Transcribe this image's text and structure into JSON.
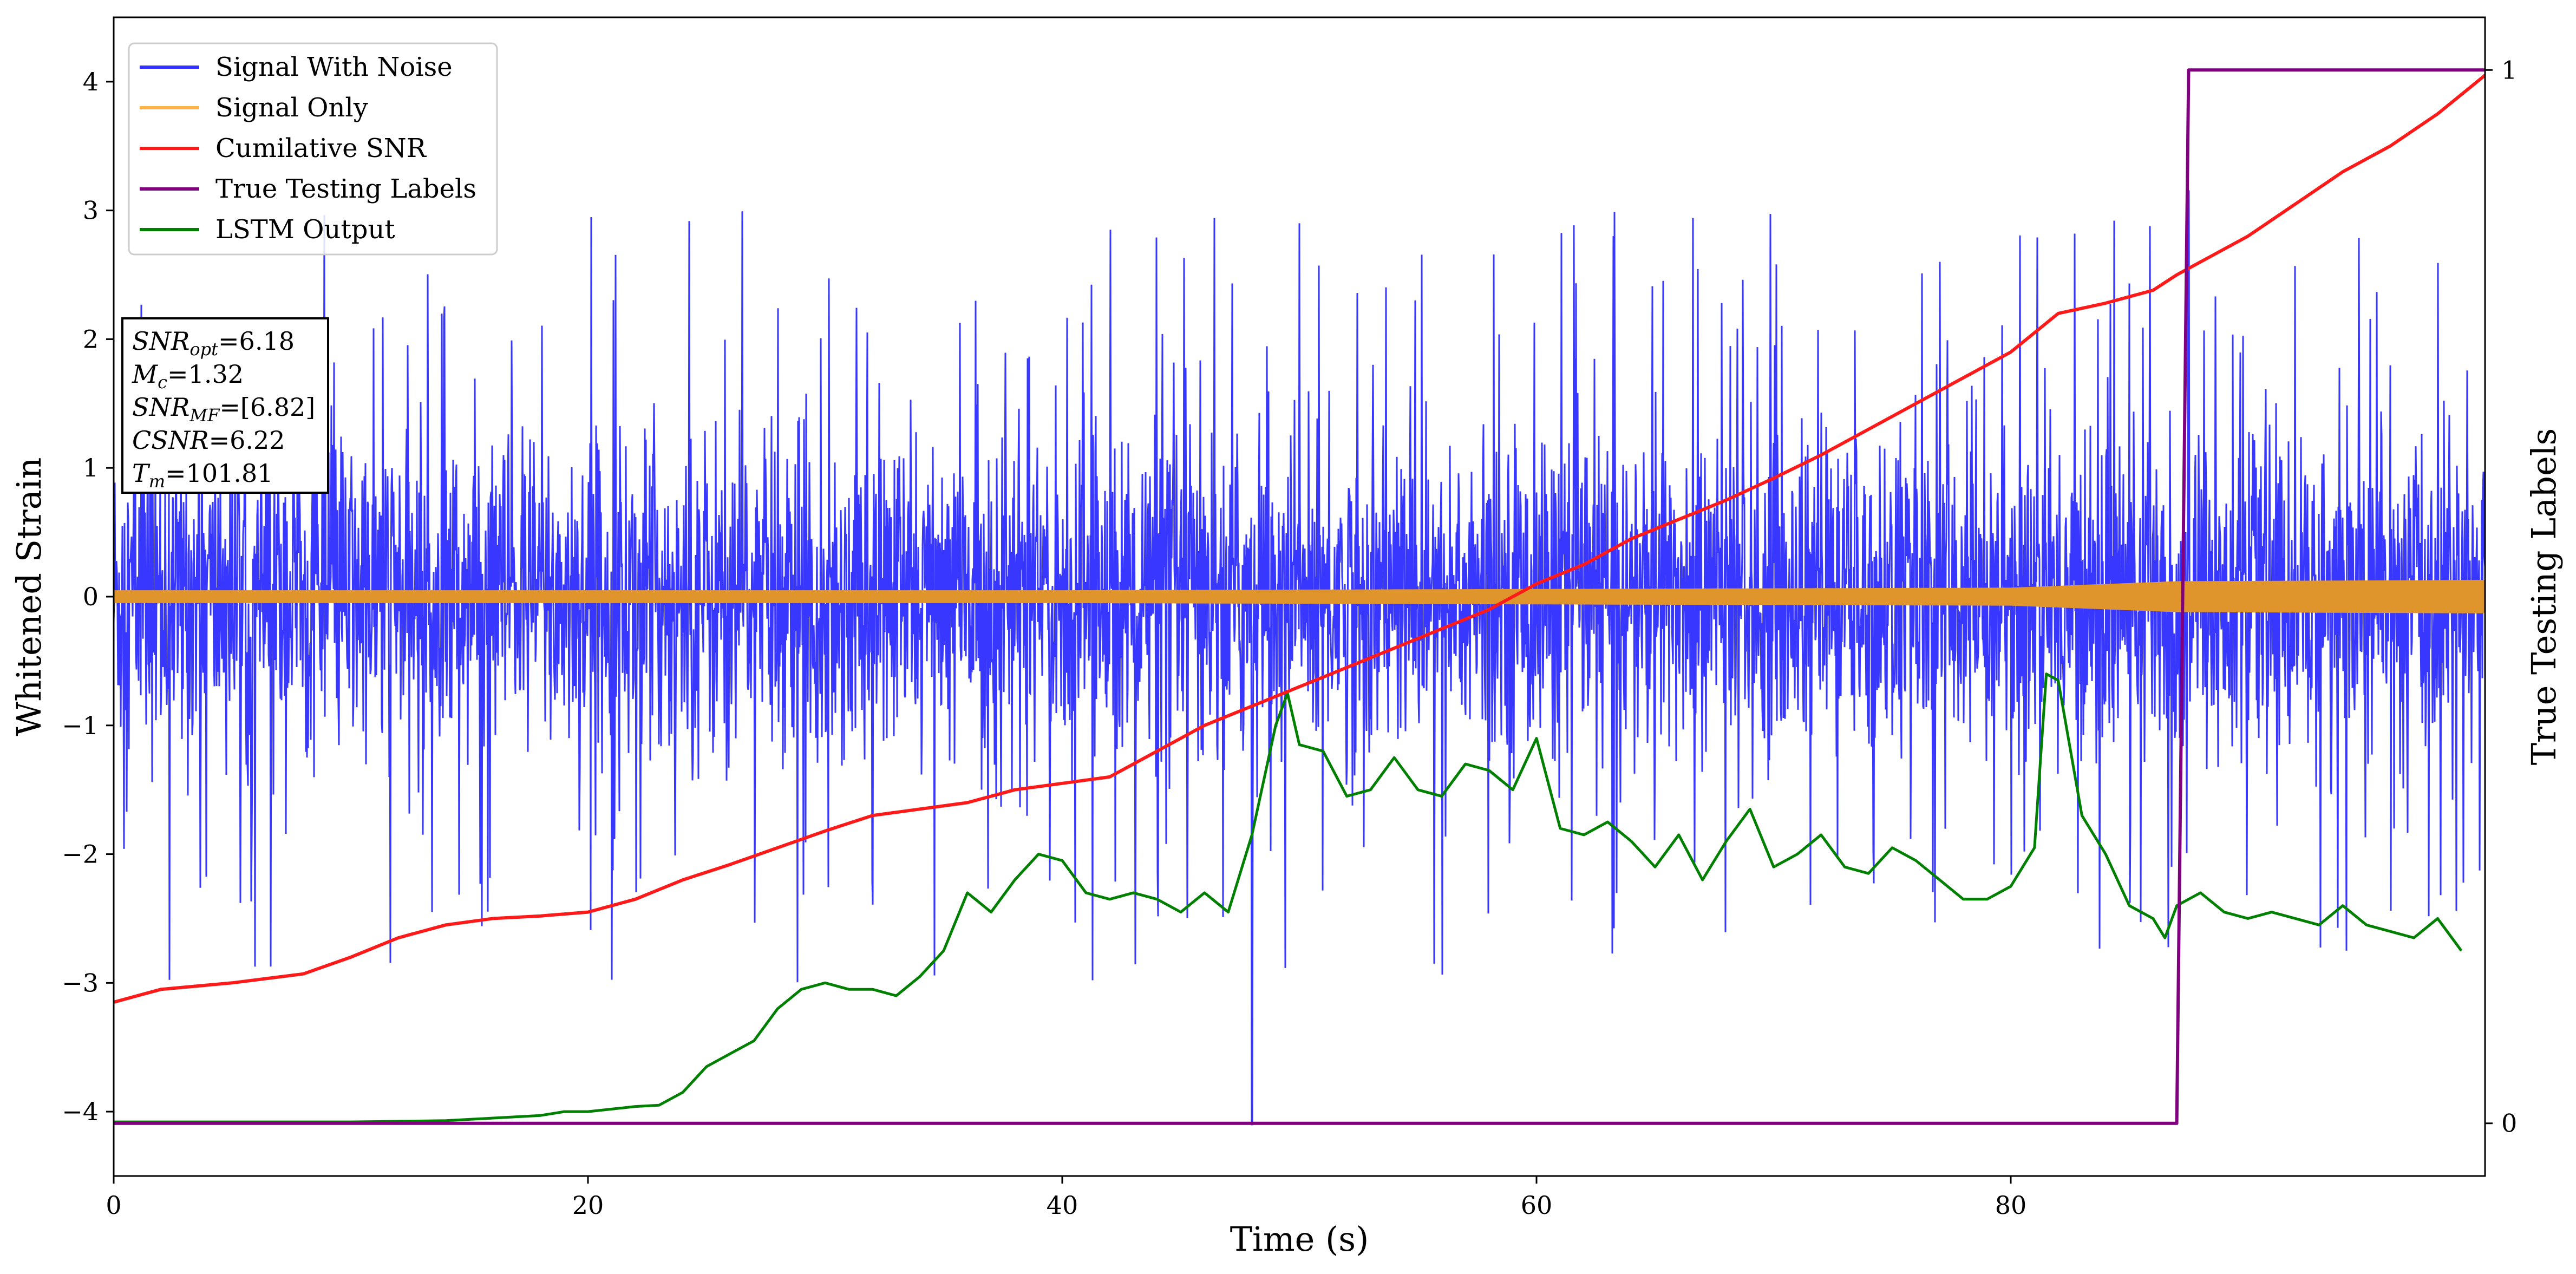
{
  "chart_data": {
    "type": "line",
    "xlabel": "Time (s)",
    "ylabel": "Whitened Strain",
    "y2label": "True Testing Labels",
    "xlim": [
      0,
      100
    ],
    "ylim": [
      -4.5,
      4.5
    ],
    "y2lim": [
      -0.05,
      1.05
    ],
    "xticks": [
      "0",
      "20",
      "40",
      "60",
      "80"
    ],
    "xtick_values": [
      0,
      20,
      40,
      60,
      80
    ],
    "yticks": [
      "−4",
      "−3",
      "−2",
      "−1",
      "0",
      "1",
      "2",
      "3",
      "4"
    ],
    "ytick_values": [
      -4,
      -3,
      -2,
      -1,
      0,
      1,
      2,
      3,
      4
    ],
    "y2ticks": [
      "0",
      "1"
    ],
    "y2tick_values": [
      0,
      1
    ],
    "grid": false,
    "legend_position": "upper-left",
    "legend": [
      {
        "label": "Signal With Noise",
        "color": "#3333ff"
      },
      {
        "label": "Signal Only",
        "color": "#ffb347"
      },
      {
        "label": "Cumilative SNR",
        "color": "#ff1a1a"
      },
      {
        "label": "True Testing Labels",
        "color": "#800080"
      },
      {
        "label": "LSTM Output",
        "color": "#008000"
      }
    ],
    "series": [
      {
        "name": "Signal With Noise",
        "axis": "left",
        "color": "#3333ff",
        "x_range": [
          0,
          100
        ],
        "amplitude_typical": 1.4,
        "amplitude_peak": 3.0,
        "spikes": [
          {
            "x": 48,
            "y": -4.1
          },
          {
            "x": 87.5,
            "y": 3.15
          },
          {
            "x": 50,
            "y": 2.9
          }
        ]
      },
      {
        "name": "Signal Only",
        "axis": "left",
        "color": "#e0952c",
        "x_range": [
          0,
          100
        ],
        "envelope": {
          "x": [
            0,
            20,
            40,
            60,
            80,
            87,
            100
          ],
          "amp": [
            0.05,
            0.05,
            0.05,
            0.06,
            0.07,
            0.12,
            0.13
          ]
        }
      },
      {
        "name": "Cumilative SNR",
        "axis": "left",
        "color": "#ff1a1a",
        "x": [
          0,
          2,
          5,
          8,
          10,
          12,
          14,
          16,
          18,
          20,
          22,
          24,
          26,
          28,
          30,
          32,
          34,
          36,
          38,
          40,
          42,
          44,
          46,
          48,
          50,
          52,
          54,
          56,
          58,
          60,
          62,
          64,
          66,
          68,
          70,
          72,
          74,
          76,
          78,
          80,
          82,
          84,
          86,
          87,
          88,
          90,
          92,
          94,
          96,
          98,
          100
        ],
        "y": [
          -3.15,
          -3.05,
          -3.0,
          -2.93,
          -2.8,
          -2.65,
          -2.55,
          -2.5,
          -2.48,
          -2.45,
          -2.35,
          -2.2,
          -2.08,
          -1.95,
          -1.82,
          -1.7,
          -1.65,
          -1.6,
          -1.5,
          -1.45,
          -1.4,
          -1.2,
          -1.0,
          -0.85,
          -0.7,
          -0.55,
          -0.4,
          -0.25,
          -0.1,
          0.1,
          0.25,
          0.45,
          0.6,
          0.75,
          0.92,
          1.1,
          1.3,
          1.5,
          1.7,
          1.9,
          2.2,
          2.28,
          2.38,
          2.5,
          2.6,
          2.8,
          3.05,
          3.3,
          3.5,
          3.75,
          4.05
        ]
      },
      {
        "name": "True Testing Labels",
        "axis": "right",
        "color": "#800080",
        "x": [
          0,
          87.0,
          87.5,
          100
        ],
        "y": [
          0,
          0,
          1,
          1
        ]
      },
      {
        "name": "LSTM Output",
        "axis": "left",
        "color": "#008000",
        "x": [
          0,
          10,
          14,
          16,
          18,
          19,
          20,
          21,
          22,
          23,
          24,
          25,
          26,
          27,
          28,
          29,
          30,
          31,
          32,
          33,
          34,
          35,
          36,
          37,
          38,
          39,
          40,
          41,
          42,
          43,
          44,
          45,
          46,
          47,
          48,
          49,
          49.5,
          50,
          51,
          52,
          53,
          54,
          55,
          56,
          57,
          58,
          59,
          60,
          61,
          62,
          63,
          64,
          65,
          66,
          67,
          68,
          69,
          70,
          71,
          72,
          73,
          74,
          75,
          76,
          77,
          78,
          79,
          80,
          81,
          81.5,
          82,
          83,
          84,
          85,
          86,
          86.5,
          87,
          88,
          89,
          90,
          91,
          92,
          93,
          94,
          95,
          96,
          97,
          98,
          99
        ],
        "y": [
          -4.08,
          -4.08,
          -4.07,
          -4.05,
          -4.03,
          -4.0,
          -4.0,
          -3.98,
          -3.96,
          -3.95,
          -3.85,
          -3.65,
          -3.55,
          -3.45,
          -3.2,
          -3.05,
          -3.0,
          -3.05,
          -3.05,
          -3.1,
          -2.95,
          -2.75,
          -2.3,
          -2.45,
          -2.2,
          -2.0,
          -2.05,
          -2.3,
          -2.35,
          -2.3,
          -2.35,
          -2.45,
          -2.3,
          -2.45,
          -1.85,
          -1.0,
          -0.75,
          -1.15,
          -1.2,
          -1.55,
          -1.5,
          -1.25,
          -1.5,
          -1.55,
          -1.3,
          -1.35,
          -1.5,
          -1.1,
          -1.8,
          -1.85,
          -1.75,
          -1.9,
          -2.1,
          -1.85,
          -2.2,
          -1.9,
          -1.65,
          -2.1,
          -2.0,
          -1.85,
          -2.1,
          -2.15,
          -1.95,
          -2.05,
          -2.2,
          -2.35,
          -2.35,
          -2.25,
          -1.95,
          -0.6,
          -0.65,
          -1.7,
          -2.0,
          -2.4,
          -2.5,
          -2.65,
          -2.4,
          -2.3,
          -2.45,
          -2.5,
          -2.45,
          -2.5,
          -2.55,
          -2.4,
          -2.55,
          -2.6,
          -2.65,
          -2.5,
          -2.75
        ]
      }
    ],
    "annotation": {
      "lines": [
        {
          "name": "SNR",
          "sub": "opt",
          "value": "=6.18"
        },
        {
          "name": "M",
          "sub": "c",
          "value": "=1.32"
        },
        {
          "name": "SNR",
          "sub": "MF",
          "value": "=[6.82]"
        },
        {
          "name": "CSNR",
          "sub": "",
          "value": "=6.22"
        },
        {
          "name": "T",
          "sub": "m",
          "value": "=101.81"
        }
      ]
    }
  }
}
